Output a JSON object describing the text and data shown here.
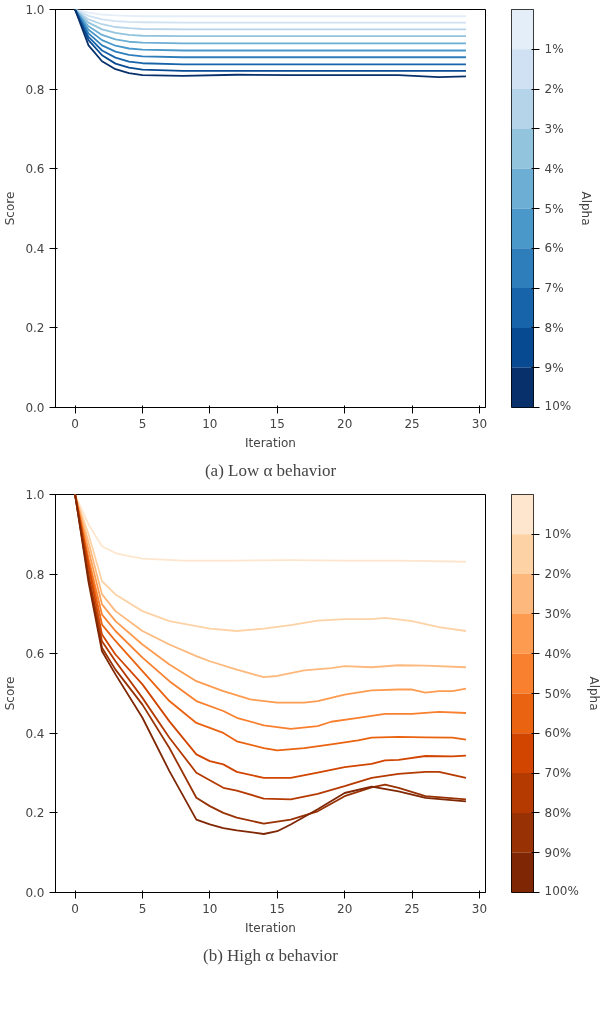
{
  "chart_data": [
    {
      "type": "line",
      "xlabel": "Iteration",
      "ylabel": "Score",
      "clabel": "Alpha",
      "annotations": [
        "(a) Low α behavior"
      ],
      "xlim": [
        -1.45,
        30.45
      ],
      "ylim": [
        0,
        1
      ],
      "xticks": [
        0,
        5,
        10,
        15,
        20,
        25,
        30
      ],
      "yticks": [
        {
          "value": 0,
          "label": "0.0"
        },
        {
          "value": 0.2,
          "label": "0.2"
        },
        {
          "value": 0.4,
          "label": "0.4"
        },
        {
          "value": 0.6,
          "label": "0.6"
        },
        {
          "value": 0.8,
          "label": "0.8"
        },
        {
          "value": 1,
          "label": "1.0"
        }
      ],
      "clim": [
        10,
        0
      ],
      "cticks": [
        {
          "value": 1,
          "label": "1%"
        },
        {
          "value": 2,
          "label": "2%"
        },
        {
          "value": 3,
          "label": "3%"
        },
        {
          "value": 4,
          "label": "4%"
        },
        {
          "value": 5,
          "label": "5%"
        },
        {
          "value": 6,
          "label": "6%"
        },
        {
          "value": 7,
          "label": "7%"
        },
        {
          "value": 8,
          "label": "8%"
        },
        {
          "value": 9,
          "label": "9%"
        },
        {
          "value": 10,
          "label": "10%"
        }
      ],
      "x": [
        0,
        1,
        2,
        3,
        4,
        5,
        8,
        12,
        16,
        20,
        24,
        27,
        29
      ],
      "series": [
        {
          "color": "#e3eef9",
          "values": [
            1,
            0.992,
            0.987,
            0.985,
            0.984,
            0.983,
            0.983,
            0.983,
            0.983,
            0.983,
            0.983,
            0.983,
            0.983
          ]
        },
        {
          "color": "#cfe1f2",
          "values": [
            1,
            0.984,
            0.975,
            0.971,
            0.969,
            0.968,
            0.967,
            0.967,
            0.967,
            0.967,
            0.967,
            0.967,
            0.967
          ]
        },
        {
          "color": "#b5d4e9",
          "values": [
            1,
            0.975,
            0.963,
            0.956,
            0.953,
            0.951,
            0.95,
            0.95,
            0.95,
            0.95,
            0.95,
            0.95,
            0.95
          ]
        },
        {
          "color": "#93c4de",
          "values": [
            1,
            0.967,
            0.95,
            0.941,
            0.936,
            0.934,
            0.933,
            0.933,
            0.933,
            0.933,
            0.933,
            0.933,
            0.933
          ]
        },
        {
          "color": "#6daed5",
          "values": [
            1,
            0.958,
            0.936,
            0.925,
            0.919,
            0.917,
            0.915,
            0.915,
            0.915,
            0.915,
            0.915,
            0.915,
            0.915
          ]
        },
        {
          "color": "#4a98c9",
          "values": [
            1,
            0.949,
            0.923,
            0.909,
            0.902,
            0.899,
            0.897,
            0.897,
            0.897,
            0.897,
            0.897,
            0.897,
            0.897
          ]
        },
        {
          "color": "#2e7ebc",
          "values": [
            1,
            0.94,
            0.91,
            0.894,
            0.886,
            0.882,
            0.88,
            0.88,
            0.88,
            0.88,
            0.88,
            0.88,
            0.88
          ]
        },
        {
          "color": "#1764ab",
          "values": [
            1,
            0.931,
            0.897,
            0.879,
            0.869,
            0.865,
            0.862,
            0.862,
            0.862,
            0.862,
            0.862,
            0.862,
            0.862
          ]
        },
        {
          "color": "#084a91",
          "values": [
            1,
            0.923,
            0.885,
            0.864,
            0.854,
            0.849,
            0.846,
            0.846,
            0.846,
            0.846,
            0.846,
            0.846,
            0.846
          ]
        },
        {
          "color": "#08306b",
          "values": [
            1,
            0.91,
            0.87,
            0.85,
            0.84,
            0.835,
            0.833,
            0.836,
            0.835,
            0.835,
            0.835,
            0.83,
            0.832
          ]
        }
      ]
    },
    {
      "type": "line",
      "xlabel": "Iteration",
      "ylabel": "Score",
      "clabel": "Alpha",
      "annotations": [
        "(b) High α behavior"
      ],
      "xlim": [
        -1.45,
        30.45
      ],
      "ylim": [
        0,
        1
      ],
      "xticks": [
        0,
        5,
        10,
        15,
        20,
        25,
        30
      ],
      "yticks": [
        {
          "value": 0,
          "label": "0.0"
        },
        {
          "value": 0.2,
          "label": "0.2"
        },
        {
          "value": 0.4,
          "label": "0.4"
        },
        {
          "value": 0.6,
          "label": "0.6"
        },
        {
          "value": 0.8,
          "label": "0.8"
        },
        {
          "value": 1,
          "label": "1.0"
        }
      ],
      "clim": [
        100,
        0
      ],
      "cticks": [
        {
          "value": 10,
          "label": "10%"
        },
        {
          "value": 20,
          "label": "20%"
        },
        {
          "value": 30,
          "label": "30%"
        },
        {
          "value": 40,
          "label": "40%"
        },
        {
          "value": 50,
          "label": "50%"
        },
        {
          "value": 60,
          "label": "60%"
        },
        {
          "value": 70,
          "label": "70%"
        },
        {
          "value": 80,
          "label": "80%"
        },
        {
          "value": 90,
          "label": "90%"
        },
        {
          "value": 100,
          "label": "100%"
        }
      ],
      "series": [
        {
          "color": "#fee6ce",
          "x": [
            0,
            1,
            2,
            3,
            4,
            5,
            8,
            12,
            16,
            20,
            24,
            29
          ],
          "values": [
            1,
            0.925,
            0.87,
            0.853,
            0.845,
            0.839,
            0.834,
            0.834,
            0.835,
            0.834,
            0.834,
            0.831
          ]
        },
        {
          "color": "#fdd2a5",
          "x": [
            0,
            1,
            2,
            3,
            5,
            7,
            10,
            12,
            14,
            16,
            18,
            20,
            22,
            23,
            25,
            27,
            29
          ],
          "values": [
            1,
            0.9,
            0.782,
            0.749,
            0.707,
            0.682,
            0.663,
            0.657,
            0.663,
            0.672,
            0.683,
            0.687,
            0.687,
            0.69,
            0.682,
            0.667,
            0.657
          ]
        },
        {
          "color": "#fdb97d",
          "x": [
            0,
            1,
            2,
            3,
            5,
            7,
            9,
            10,
            12,
            14,
            15,
            17,
            19,
            20,
            22,
            24,
            26,
            29
          ],
          "values": [
            1,
            0.88,
            0.749,
            0.707,
            0.657,
            0.623,
            0.594,
            0.581,
            0.56,
            0.541,
            0.544,
            0.558,
            0.564,
            0.569,
            0.566,
            0.571,
            0.57,
            0.566
          ]
        },
        {
          "color": "#fd9c51",
          "x": [
            0,
            1,
            2,
            3,
            5,
            7,
            9,
            11,
            13,
            15,
            17,
            18,
            20,
            22,
            24,
            25,
            26,
            27,
            28,
            29
          ],
          "values": [
            1,
            0.86,
            0.724,
            0.682,
            0.623,
            0.573,
            0.531,
            0.506,
            0.485,
            0.477,
            0.477,
            0.481,
            0.497,
            0.508,
            0.51,
            0.51,
            0.502,
            0.506,
            0.506,
            0.512
          ]
        },
        {
          "color": "#f8802f",
          "x": [
            0,
            1,
            2,
            3,
            5,
            7,
            9,
            11,
            12,
            14,
            16,
            18,
            19,
            21,
            23,
            25,
            27,
            29
          ],
          "values": [
            1,
            0.84,
            0.698,
            0.657,
            0.59,
            0.531,
            0.481,
            0.456,
            0.439,
            0.42,
            0.411,
            0.418,
            0.429,
            0.439,
            0.449,
            0.449,
            0.454,
            0.451
          ]
        },
        {
          "color": "#ea6311",
          "x": [
            0,
            1,
            2,
            3,
            5,
            7,
            9,
            11,
            12,
            14,
            15,
            17,
            19,
            21,
            22,
            24,
            26,
            28,
            29
          ],
          "values": [
            1,
            0.83,
            0.673,
            0.632,
            0.556,
            0.481,
            0.426,
            0.401,
            0.38,
            0.363,
            0.357,
            0.363,
            0.372,
            0.382,
            0.389,
            0.391,
            0.39,
            0.389,
            0.384
          ]
        },
        {
          "color": "#d14501",
          "x": [
            0,
            1,
            2,
            3,
            5,
            7,
            9,
            10,
            11,
            12,
            14,
            16,
            18,
            20,
            22,
            23,
            24,
            26,
            28,
            29
          ],
          "values": [
            1,
            0.82,
            0.648,
            0.598,
            0.523,
            0.43,
            0.347,
            0.33,
            0.322,
            0.303,
            0.288,
            0.288,
            0.301,
            0.315,
            0.323,
            0.332,
            0.333,
            0.343,
            0.342,
            0.344
          ]
        },
        {
          "color": "#b53a02",
          "x": [
            0,
            1,
            2,
            3,
            5,
            7,
            9,
            11,
            12,
            14,
            16,
            18,
            20,
            22,
            24,
            26,
            27,
            29
          ],
          "values": [
            1,
            0.8,
            0.631,
            0.581,
            0.489,
            0.389,
            0.301,
            0.263,
            0.256,
            0.236,
            0.234,
            0.248,
            0.267,
            0.288,
            0.298,
            0.303,
            0.303,
            0.288
          ]
        },
        {
          "color": "#983204",
          "x": [
            0,
            1,
            2,
            3,
            5,
            7,
            9,
            10,
            11,
            12,
            14,
            15,
            16,
            18,
            20,
            22,
            23,
            24,
            26,
            29
          ],
          "values": [
            1,
            0.79,
            0.615,
            0.56,
            0.472,
            0.363,
            0.238,
            0.217,
            0.2,
            0.188,
            0.173,
            0.178,
            0.183,
            0.204,
            0.242,
            0.264,
            0.271,
            0.263,
            0.242,
            0.234
          ]
        },
        {
          "color": "#7f2704",
          "x": [
            0,
            1,
            2,
            3,
            5,
            7,
            9,
            10,
            11,
            12,
            14,
            15,
            16,
            18,
            20,
            22,
            24,
            26,
            29
          ],
          "values": [
            1,
            0.78,
            0.606,
            0.548,
            0.439,
            0.305,
            0.183,
            0.171,
            0.162,
            0.156,
            0.147,
            0.154,
            0.171,
            0.209,
            0.25,
            0.266,
            0.254,
            0.238,
            0.229
          ]
        }
      ]
    }
  ]
}
